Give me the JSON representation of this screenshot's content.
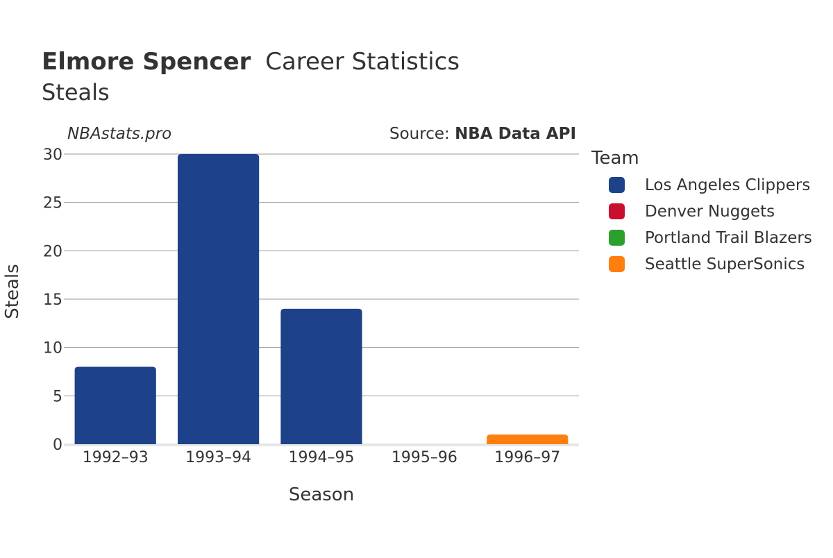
{
  "chart_data": {
    "type": "bar",
    "title_bold": "Elmore Spencer",
    "title_rest": "Career Statistics",
    "subtitle": "Steals",
    "watermark": "NBAstats.pro",
    "source_prefix": "Source: ",
    "source_name": "NBA Data API",
    "xlabel": "Season",
    "ylabel": "Steals",
    "ylim": [
      0,
      30
    ],
    "yticks": [
      0,
      5,
      10,
      15,
      20,
      25,
      30
    ],
    "categories": [
      "1992–93",
      "1993–94",
      "1994–95",
      "1995–96",
      "1996–97"
    ],
    "bars": [
      {
        "season": "1992–93",
        "team": "Los Angeles Clippers",
        "value": 8
      },
      {
        "season": "1993–94",
        "team": "Los Angeles Clippers",
        "value": 30
      },
      {
        "season": "1994–95",
        "team": "Los Angeles Clippers",
        "value": 14
      },
      {
        "season": "1995–96",
        "team": "Denver Nuggets",
        "value": 0
      },
      {
        "season": "1996–97",
        "team": "Seattle SuperSonics",
        "value": 1
      }
    ],
    "legend": {
      "title": "Team",
      "items": [
        {
          "name": "Los Angeles Clippers",
          "color": "#1d428a"
        },
        {
          "name": "Denver Nuggets",
          "color": "#c8102e"
        },
        {
          "name": "Portland Trail Blazers",
          "color": "#2ca02c"
        },
        {
          "name": "Seattle SuperSonics",
          "color": "#ff7f0e"
        }
      ]
    }
  }
}
